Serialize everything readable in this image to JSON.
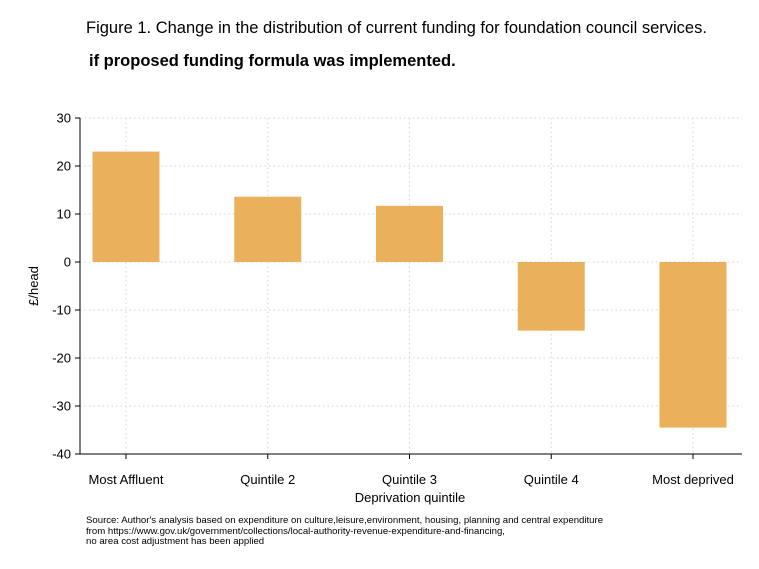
{
  "title": "Figure 1. Change in the distribution of current funding for foundation council services.",
  "subtitle": " if proposed funding formula was implemented.",
  "source_lines": [
    "Source: Author's analysis based on expenditure on culture,leisure,environment, housing, planning and central expenditure",
    "from https://www.gov.uk/government/collections/local-authority-revenue-expenditure-and-financing,",
    "no area cost adjustment has been applied"
  ],
  "colors": {
    "bar": "#EBB05C",
    "grid": "#d4d4d4",
    "axis": "#000000"
  },
  "chart_data": {
    "type": "bar",
    "categories": [
      "Most Affluent",
      "Quintile 2",
      "Quintile 3",
      "Quintile 4",
      "Most deprived"
    ],
    "values": [
      23,
      13.6,
      11.7,
      -14.3,
      -34.5
    ],
    "xlabel": "Deprivation quintile",
    "ylabel": "£/head",
    "ylim": [
      -40,
      30
    ],
    "yticks": [
      30,
      20,
      10,
      0,
      -10,
      -20,
      -30,
      -40
    ],
    "ytick_labels": [
      "30",
      "20",
      "10",
      "0",
      "-10",
      "-20",
      "-30",
      "-40"
    ],
    "grid": true
  }
}
